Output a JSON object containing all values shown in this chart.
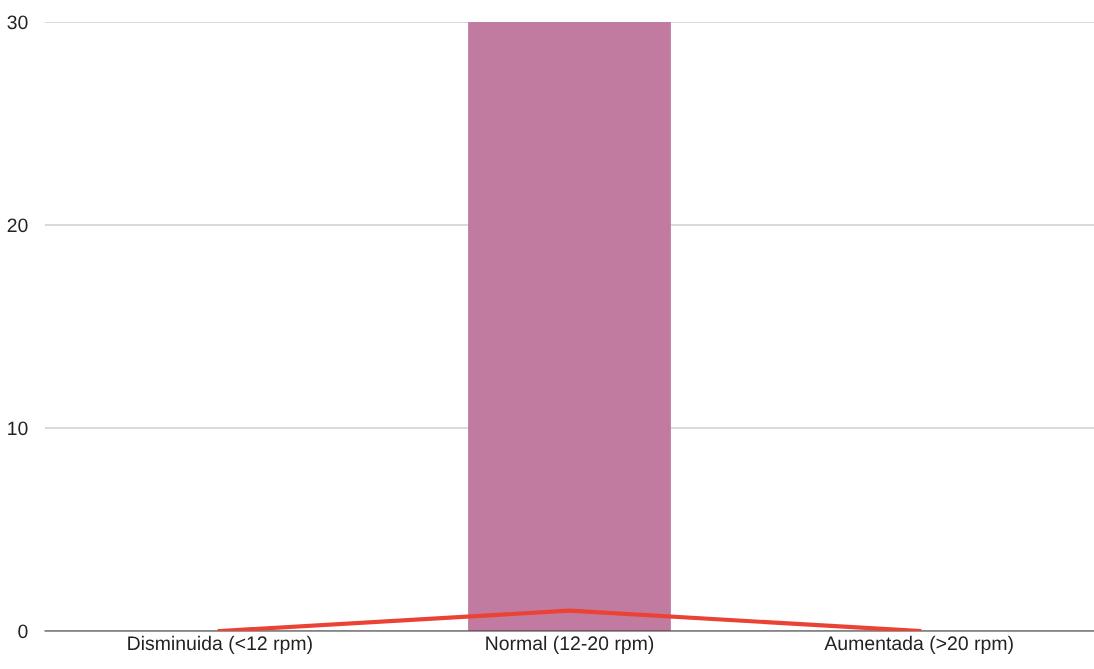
{
  "chart_data": {
    "type": "bar",
    "categories": [
      "Disminuida (<12 rpm)",
      "Normal (12-20 rpm)",
      "Aumentada (>20 rpm)"
    ],
    "series": [
      {
        "color": "#c27ba0",
        "values": [
          0,
          30,
          0
        ]
      },
      {
        "type": "line",
        "color": "#ea4335",
        "values": [
          0,
          1,
          0
        ]
      }
    ],
    "ylim": [
      0,
      30
    ],
    "yticks": [
      0,
      10,
      20,
      30
    ],
    "grid": "y",
    "legend": false
  }
}
